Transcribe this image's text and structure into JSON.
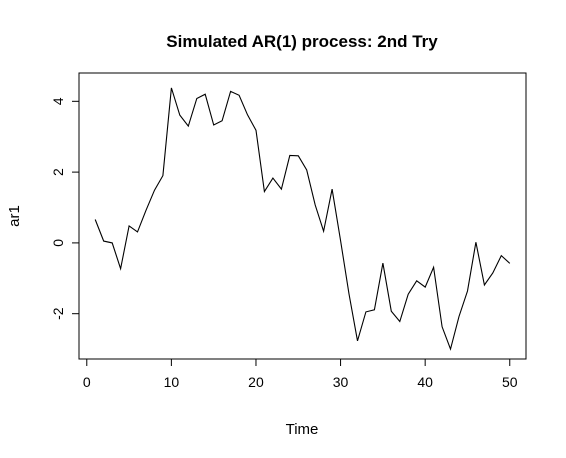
{
  "chart_data": {
    "type": "line",
    "title": "Simulated AR(1) process: 2nd Try",
    "xlabel": "Time",
    "ylabel": "ar1",
    "xlim": [
      -0.92,
      51.92
    ],
    "ylim": [
      -3.28,
      4.8
    ],
    "x_ticks": [
      0,
      10,
      20,
      30,
      40,
      50
    ],
    "y_ticks": [
      -2,
      0,
      2,
      4
    ],
    "grid": false,
    "line_color": "#000000",
    "series": [
      {
        "x": [
          1,
          2,
          3,
          4,
          5,
          6,
          7,
          8,
          9,
          10,
          11,
          12,
          13,
          14,
          15,
          16,
          17,
          18,
          19,
          20,
          21,
          22,
          23,
          24,
          25,
          26,
          27,
          28,
          29,
          30,
          31,
          32,
          33,
          34,
          35,
          36,
          37,
          38,
          39,
          40,
          41,
          42,
          43,
          44,
          45,
          46,
          47,
          48,
          49,
          50
        ],
        "values": [
          0.66,
          0.05,
          0.0,
          -0.73,
          0.48,
          0.31,
          0.92,
          1.49,
          1.9,
          4.38,
          3.61,
          3.3,
          4.08,
          4.2,
          3.33,
          3.45,
          4.28,
          4.17,
          3.62,
          3.18,
          1.45,
          1.83,
          1.52,
          2.47,
          2.46,
          2.06,
          1.07,
          0.33,
          1.52,
          0.06,
          -1.44,
          -2.77,
          -1.95,
          -1.89,
          -0.57,
          -1.93,
          -2.22,
          -1.45,
          -1.07,
          -1.25,
          -0.69,
          -2.37,
          -3.0,
          -2.08,
          -1.36,
          0.02,
          -1.19,
          -0.85,
          -0.36,
          -0.58
        ]
      }
    ]
  }
}
